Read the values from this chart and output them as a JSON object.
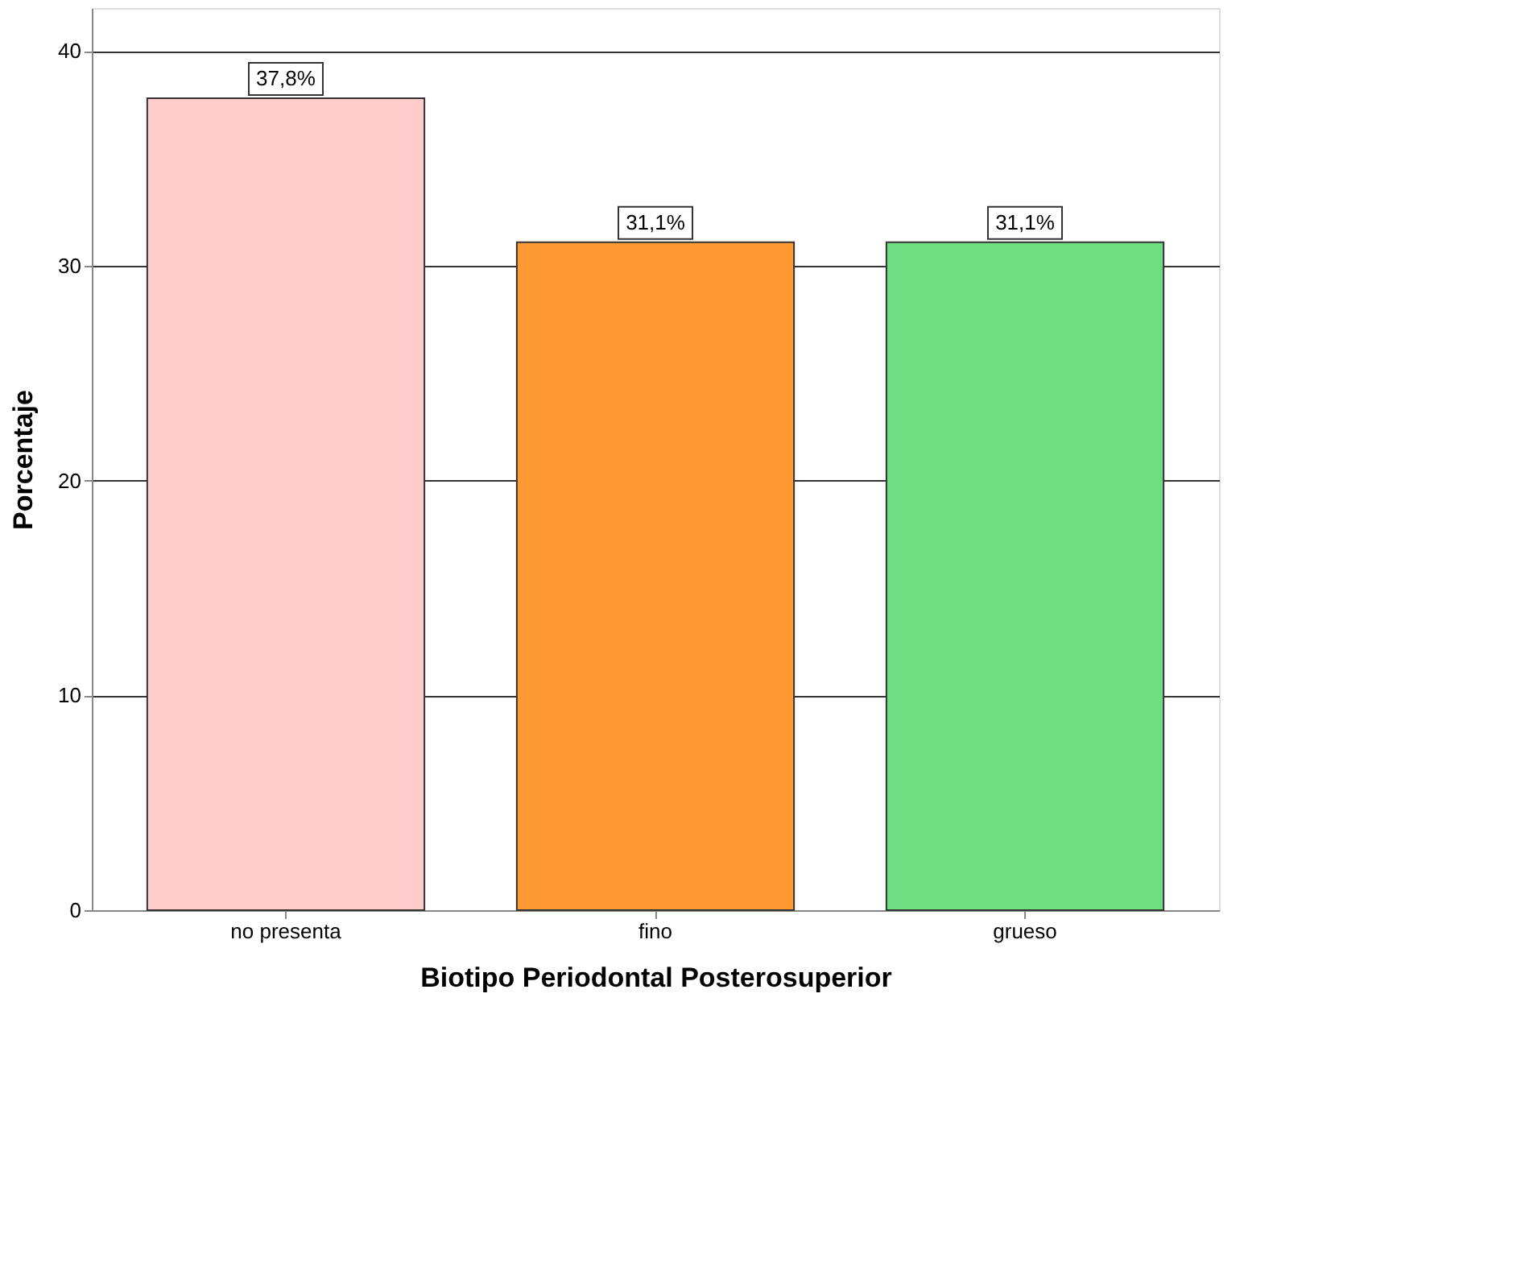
{
  "chart_data": {
    "type": "bar",
    "xlabel": "Biotipo Periodontal Posterosuperior",
    "ylabel": "Porcentaje",
    "categories": [
      "no presenta",
      "fino",
      "grueso"
    ],
    "values": [
      37.8,
      31.1,
      31.1
    ],
    "colors": [
      "#ffcccc",
      "#ff9933",
      "#70dc80"
    ],
    "value_labels": [
      "37,8%",
      "31,1%",
      "31,1%"
    ],
    "ylim": [
      0,
      42
    ],
    "yticks": [
      0,
      10,
      20,
      30,
      40
    ],
    "grid": "y"
  }
}
